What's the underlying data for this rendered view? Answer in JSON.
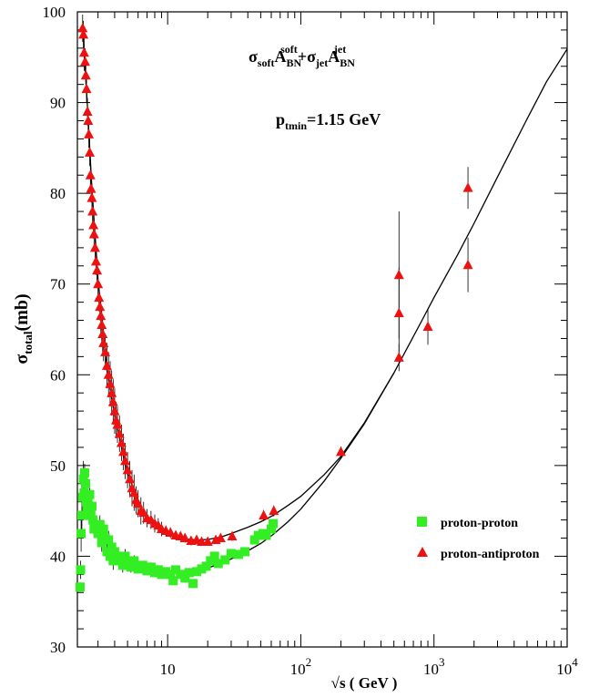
{
  "chart_data": {
    "type": "scatter",
    "title": "",
    "xlabel": "√s ( GeV )",
    "ylabel": "σ_total(mb)",
    "xscale": "log",
    "xlim": [
      2.1,
      10000
    ],
    "ylim": [
      30,
      100
    ],
    "y_ticks": [
      30,
      40,
      50,
      60,
      70,
      80,
      90,
      100
    ],
    "x_tick_labels": [
      {
        "value": 10,
        "base": "10",
        "exp": ""
      },
      {
        "value": 100,
        "base": "10",
        "exp": "2"
      },
      {
        "value": 1000,
        "base": "10",
        "exp": "3"
      },
      {
        "value": 10000,
        "base": "10",
        "exp": "4"
      }
    ],
    "annotations": {
      "formula": {
        "sigma1": "σ",
        "sub1": "soft",
        "a1": "A",
        "sub_a1": "BN",
        "sup_a1": "soft",
        "plus": "+",
        "sigma2": "σ",
        "sub2": "jet",
        "a2": "A",
        "sub_a2": "BN",
        "sup_a2": "jet"
      },
      "ptmin": {
        "p": "p",
        "sub": "tmin",
        "rest": "=1.15 GeV"
      }
    },
    "legend_position": "lower-right",
    "grid": false,
    "colors": {
      "pp": "#33ee22",
      "pbar": "#ee1111",
      "curve": "#000000"
    },
    "series": [
      {
        "name": "proton-proton",
        "marker": "square",
        "color": "#33ee22",
        "points": [
          [
            2.2,
            36.6,
            0.5
          ],
          [
            2.22,
            38.5,
            1
          ],
          [
            2.24,
            42.5,
            2
          ],
          [
            2.27,
            44.5,
            1.5
          ],
          [
            2.3,
            46.5,
            2
          ],
          [
            2.33,
            48.5,
            2
          ],
          [
            2.36,
            47.0,
            1.5
          ],
          [
            2.38,
            49.2,
            1
          ],
          [
            2.42,
            48.0,
            1.5
          ],
          [
            2.45,
            46.0,
            1.2
          ],
          [
            2.48,
            45.0,
            1
          ],
          [
            2.52,
            46.5,
            1
          ],
          [
            2.56,
            45.5,
            1
          ],
          [
            2.6,
            46.8,
            1
          ],
          [
            2.65,
            44.5,
            1
          ],
          [
            2.7,
            45.5,
            1
          ],
          [
            2.75,
            44.0,
            1
          ],
          [
            2.8,
            43.0,
            0.8
          ],
          [
            2.9,
            43.5,
            1
          ],
          [
            3.0,
            42.5,
            1
          ],
          [
            3.1,
            43.5,
            1
          ],
          [
            3.2,
            41.5,
            1
          ],
          [
            3.3,
            43.0,
            0.8
          ],
          [
            3.4,
            42.0,
            1
          ],
          [
            3.5,
            40.5,
            1
          ],
          [
            3.6,
            41.8,
            1
          ],
          [
            3.7,
            40.0,
            0.8
          ],
          [
            3.8,
            41.0,
            1
          ],
          [
            3.9,
            39.5,
            1
          ],
          [
            4.0,
            40.5,
            1
          ],
          [
            4.2,
            40.0,
            0.8
          ],
          [
            4.4,
            39.5,
            0.8
          ],
          [
            4.6,
            39.0,
            0.8
          ],
          [
            4.8,
            40.0,
            0.8
          ],
          [
            5.0,
            39.2,
            0.6
          ],
          [
            5.3,
            38.8,
            0.6
          ],
          [
            5.6,
            39.5,
            0.6
          ],
          [
            6.0,
            38.6,
            0.5
          ],
          [
            6.5,
            39.0,
            0.5
          ],
          [
            7.0,
            38.4,
            0.5
          ],
          [
            7.5,
            38.8,
            0.5
          ],
          [
            8.0,
            38.2,
            0.5
          ],
          [
            8.5,
            38.5,
            0.5
          ],
          [
            9.0,
            38.0,
            0.4
          ],
          [
            9.7,
            38.3,
            0.4
          ],
          [
            10.5,
            38.0,
            0.4
          ],
          [
            11.0,
            37.3,
            0.4
          ],
          [
            11.5,
            38.5,
            0.4
          ],
          [
            12.5,
            38.0,
            0.3
          ],
          [
            13.5,
            37.6,
            0.3
          ],
          [
            14.5,
            38.2,
            0.3
          ],
          [
            15.5,
            37.0,
            0.4
          ],
          [
            16.5,
            38.3,
            0.3
          ],
          [
            18.0,
            38.6,
            0.3
          ],
          [
            19.5,
            38.9,
            0.3
          ],
          [
            21.0,
            39.5,
            0.3
          ],
          [
            22.5,
            40.0,
            0.3
          ],
          [
            24.0,
            39.2,
            0.3
          ],
          [
            27.0,
            39.6,
            0.3
          ],
          [
            30.0,
            40.3,
            0.3
          ],
          [
            34.0,
            40.2,
            0.3
          ],
          [
            38.0,
            40.5,
            0.3
          ],
          [
            45.0,
            41.8,
            0.3
          ],
          [
            48.0,
            42.3,
            0.3
          ],
          [
            52.0,
            42.5,
            0.3
          ],
          [
            55.0,
            42.3,
            0.3
          ],
          [
            60.0,
            43.0,
            0.4
          ],
          [
            62.0,
            43.6,
            0.4
          ]
        ]
      },
      {
        "name": "proton-antiproton",
        "marker": "triangle",
        "color": "#ee1111",
        "points": [
          [
            2.3,
            98.2,
            1.5
          ],
          [
            2.33,
            97.5,
            1.5
          ],
          [
            2.36,
            95.5,
            2
          ],
          [
            2.4,
            94.5,
            1.5
          ],
          [
            2.43,
            93.0,
            1.5
          ],
          [
            2.46,
            91.5,
            1.5
          ],
          [
            2.5,
            89.0,
            1.5
          ],
          [
            2.53,
            88.0,
            1.5
          ],
          [
            2.56,
            86.5,
            1.5
          ],
          [
            2.6,
            84.5,
            1.5
          ],
          [
            2.63,
            82.0,
            1.5
          ],
          [
            2.66,
            80.5,
            1.5
          ],
          [
            2.7,
            79.5,
            1.5
          ],
          [
            2.73,
            78.0,
            1.5
          ],
          [
            2.77,
            76.5,
            1.5
          ],
          [
            2.8,
            75.5,
            1.5
          ],
          [
            2.85,
            74.0,
            1.5
          ],
          [
            2.9,
            72.5,
            1.5
          ],
          [
            2.95,
            71.5,
            1.5
          ],
          [
            3.0,
            70.0,
            1.5
          ],
          [
            3.05,
            68.5,
            1.5
          ],
          [
            3.1,
            67.5,
            1.5
          ],
          [
            3.15,
            66.5,
            2
          ],
          [
            3.2,
            65.5,
            2
          ],
          [
            3.25,
            64.5,
            2
          ],
          [
            3.3,
            63.5,
            2
          ],
          [
            3.4,
            62.5,
            2
          ],
          [
            3.5,
            61.0,
            2.5
          ],
          [
            3.6,
            60.0,
            2.5
          ],
          [
            3.7,
            59.0,
            2.5
          ],
          [
            3.8,
            58.0,
            2.5
          ],
          [
            3.9,
            57.0,
            2.5
          ],
          [
            4.0,
            56.0,
            2.5
          ],
          [
            4.1,
            55.0,
            2
          ],
          [
            4.2,
            54.5,
            2
          ],
          [
            4.35,
            53.5,
            2
          ],
          [
            4.5,
            52.5,
            2
          ],
          [
            4.65,
            51.5,
            2
          ],
          [
            4.8,
            50.5,
            2
          ],
          [
            5.0,
            49.5,
            2
          ],
          [
            5.2,
            48.5,
            2
          ],
          [
            5.4,
            47.5,
            2
          ],
          [
            5.6,
            47.0,
            2
          ],
          [
            5.8,
            46.2,
            1.5
          ],
          [
            6.0,
            45.8,
            1.5
          ],
          [
            6.3,
            45.0,
            1.5
          ],
          [
            6.6,
            44.8,
            1.2
          ],
          [
            7.0,
            44.2,
            1
          ],
          [
            7.5,
            44.0,
            1
          ],
          [
            8.0,
            43.6,
            1
          ],
          [
            8.5,
            43.4,
            0.8
          ],
          [
            9.0,
            43.0,
            0.8
          ],
          [
            9.7,
            42.8,
            0.6
          ],
          [
            10.5,
            42.6,
            0.6
          ],
          [
            11.5,
            42.3,
            0.5
          ],
          [
            12.5,
            42.2,
            0.5
          ],
          [
            13.5,
            42.0,
            0.5
          ],
          [
            15.0,
            41.7,
            0.5
          ],
          [
            16.5,
            41.8,
            0.5
          ],
          [
            18.0,
            41.6,
            0.4
          ],
          [
            20.0,
            41.6,
            0.4
          ],
          [
            23.0,
            41.8,
            0.4
          ],
          [
            25.0,
            42.0,
            0.4
          ],
          [
            30.5,
            42.2,
            0.5
          ],
          [
            52.6,
            44.5,
            0.6
          ],
          [
            62.7,
            45.0,
            0.6
          ],
          [
            200,
            51.5,
            0.6
          ],
          [
            546,
            61.9,
            1.5
          ],
          [
            546,
            66.8,
            5
          ],
          [
            546,
            71.0,
            7
          ],
          [
            900,
            65.3,
            2
          ],
          [
            1800,
            72.1,
            3
          ],
          [
            1800,
            80.6,
            2.3
          ]
        ]
      }
    ],
    "fit_curves": [
      {
        "name": "fit-pp",
        "points": [
          [
            2.4,
            46
          ],
          [
            2.7,
            44.2
          ],
          [
            3.0,
            42.8
          ],
          [
            3.5,
            41.3
          ],
          [
            4.0,
            40.3
          ],
          [
            5.0,
            39.3
          ],
          [
            6.0,
            38.8
          ],
          [
            8.0,
            38.35
          ],
          [
            10,
            38.2
          ],
          [
            13,
            38.2
          ],
          [
            16,
            38.35
          ],
          [
            20,
            38.7
          ],
          [
            25,
            39.2
          ],
          [
            30,
            39.7
          ],
          [
            40,
            40.6
          ],
          [
            50,
            41.4
          ],
          [
            62,
            42.4
          ],
          [
            80,
            43.8
          ],
          [
            100,
            45.2
          ],
          [
            150,
            48.3
          ],
          [
            200,
            50.8
          ],
          [
            300,
            54.6
          ],
          [
            500,
            60.2
          ],
          [
            800,
            65.8
          ],
          [
            1000,
            68.5
          ],
          [
            1500,
            73.2
          ],
          [
            2000,
            76.7
          ],
          [
            3000,
            81.8
          ],
          [
            5000,
            88.2
          ],
          [
            7000,
            92.3
          ],
          [
            10000,
            95.9
          ]
        ]
      },
      {
        "name": "fit-pbar",
        "points": [
          [
            2.3,
            98.5
          ],
          [
            2.5,
            89.5
          ],
          [
            2.7,
            80.5
          ],
          [
            3.0,
            70.5
          ],
          [
            3.5,
            60.5
          ],
          [
            4.0,
            55.5
          ],
          [
            5.0,
            49.2
          ],
          [
            6.0,
            46.0
          ],
          [
            7.0,
            44.3
          ],
          [
            8.0,
            43.3
          ],
          [
            10,
            42.3
          ],
          [
            13,
            41.9
          ],
          [
            17,
            41.8
          ],
          [
            20,
            41.85
          ],
          [
            25,
            42.1
          ],
          [
            30,
            42.5
          ],
          [
            40,
            43.2
          ],
          [
            50,
            43.8
          ],
          [
            62,
            44.5
          ],
          [
            80,
            45.6
          ],
          [
            100,
            46.6
          ],
          [
            150,
            49.0
          ],
          [
            200,
            51.0
          ],
          [
            300,
            54.7
          ],
          [
            500,
            60.2
          ]
        ]
      }
    ]
  }
}
